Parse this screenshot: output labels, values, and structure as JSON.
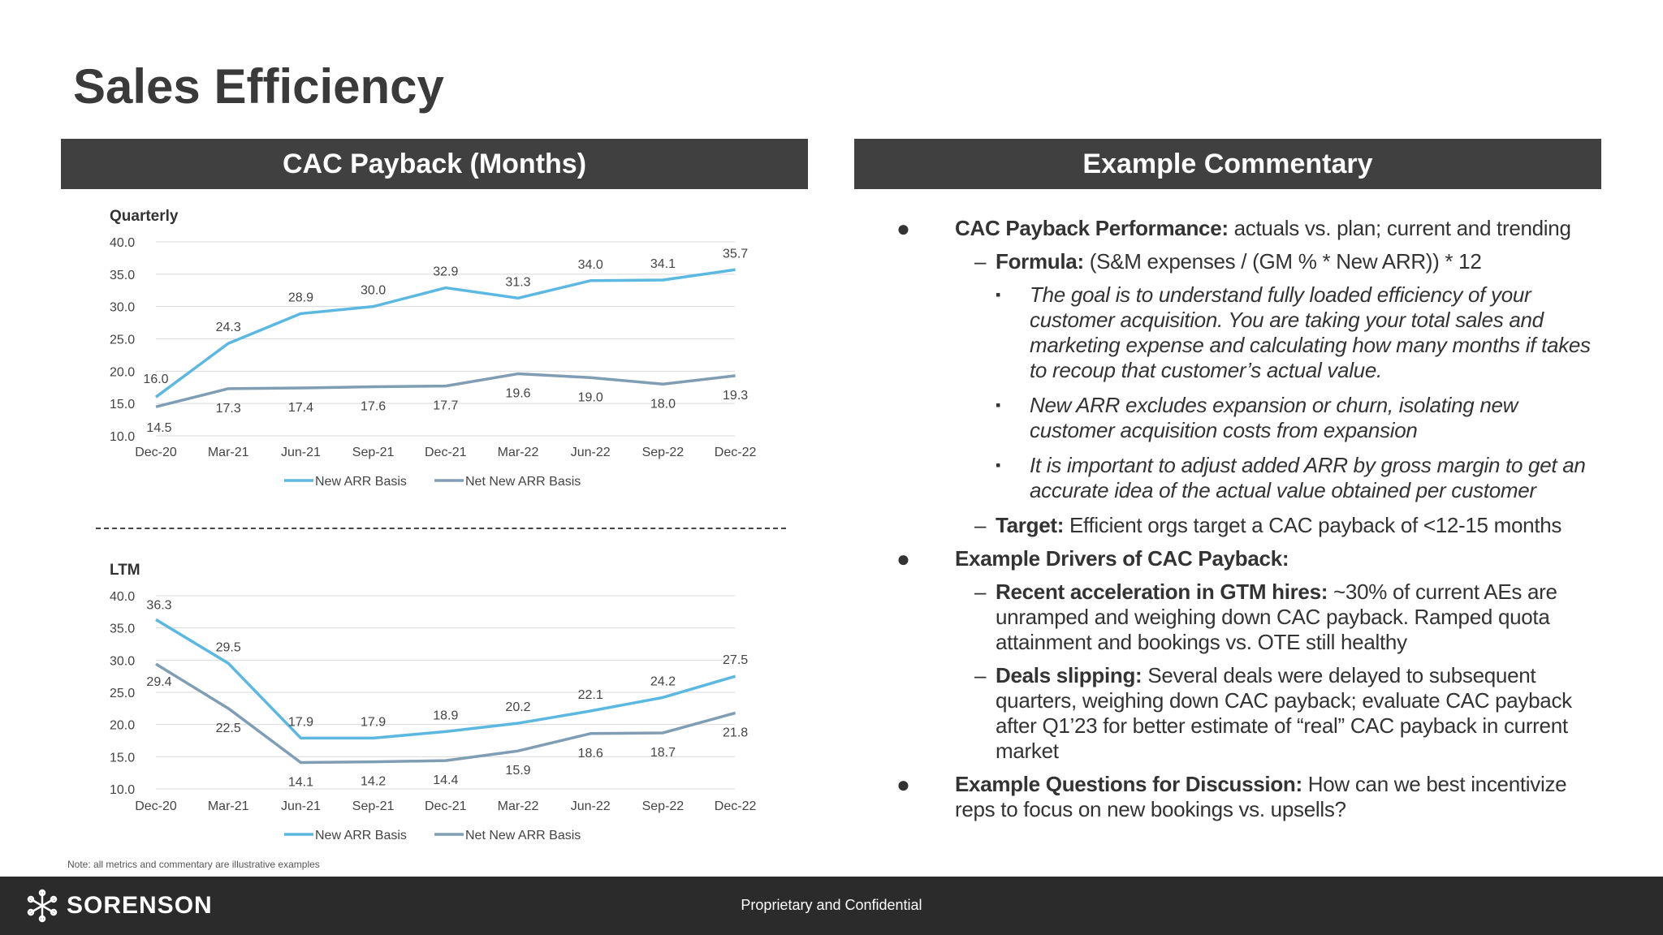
{
  "page": {
    "title": "Sales Efficiency",
    "left_header": "CAC Payback (Months)",
    "right_header": "Example Commentary",
    "note": "Note: all metrics and commentary are illustrative examples",
    "footer_text": "Proprietary and Confidential",
    "logo_text": "SORENSON"
  },
  "colors": {
    "header_bg": "#404040",
    "new_arr": "#5bb8e0",
    "net_new_arr": "#7f9db3",
    "footer_bg": "#2b2b2b"
  },
  "chart_data": [
    {
      "type": "line",
      "title": "Quarterly",
      "categories": [
        "Dec-20",
        "Mar-21",
        "Jun-21",
        "Sep-21",
        "Dec-21",
        "Mar-22",
        "Jun-22",
        "Sep-22",
        "Dec-22"
      ],
      "ylim": [
        10,
        40
      ],
      "yticks": [
        "40.0",
        "35.0",
        "30.0",
        "25.0",
        "20.0",
        "15.0",
        "10.0"
      ],
      "grid": true,
      "legend": "bottom",
      "series": [
        {
          "name": "New ARR Basis",
          "values": [
            16.0,
            24.3,
            28.9,
            30.0,
            32.9,
            31.3,
            34.0,
            34.1,
            35.7
          ]
        },
        {
          "name": "Net New ARR Basis",
          "values": [
            14.5,
            17.3,
            17.4,
            17.6,
            17.7,
            19.6,
            19.0,
            18.0,
            19.3
          ]
        }
      ]
    },
    {
      "type": "line",
      "title": "LTM",
      "categories": [
        "Dec-20",
        "Mar-21",
        "Jun-21",
        "Sep-21",
        "Dec-21",
        "Mar-22",
        "Jun-22",
        "Sep-22",
        "Dec-22"
      ],
      "ylim": [
        10,
        40
      ],
      "yticks": [
        "40.0",
        "35.0",
        "30.0",
        "25.0",
        "20.0",
        "15.0",
        "10.0"
      ],
      "grid": true,
      "legend": "bottom",
      "series": [
        {
          "name": "New ARR Basis",
          "values": [
            36.3,
            29.5,
            17.9,
            17.9,
            18.9,
            20.2,
            22.1,
            24.2,
            27.5
          ]
        },
        {
          "name": "Net New ARR Basis",
          "values": [
            29.4,
            22.5,
            14.1,
            14.2,
            14.4,
            15.9,
            18.6,
            18.7,
            21.8
          ]
        }
      ]
    }
  ],
  "commentary": [
    {
      "level": 1,
      "lead": "CAC Payback Performance:",
      "text": " actuals vs. plan; current and trending"
    },
    {
      "level": 2,
      "lead": "Formula:",
      "text": " (S&M expenses / (GM % * New ARR)) * 12"
    },
    {
      "level": 3,
      "lead": "",
      "text": "The goal is to understand fully loaded efficiency of your customer acquisition. You are taking your total sales and marketing expense and calculating how many months if takes to recoup that customer’s actual value."
    },
    {
      "level": 3,
      "lead": "",
      "text": "New ARR excludes expansion or churn, isolating new customer acquisition costs from expansion"
    },
    {
      "level": 3,
      "lead": "",
      "text": "It is important to adjust added ARR by gross margin to get an accurate idea of the actual value obtained per customer"
    },
    {
      "level": 2,
      "lead": "Target:",
      "text": " Efficient orgs target a CAC payback of <12-15 months"
    },
    {
      "level": 1,
      "lead": "Example Drivers of CAC Payback:",
      "text": ""
    },
    {
      "level": 2,
      "lead": "Recent acceleration in GTM hires:",
      "text": " ~30% of current AEs are unramped and weighing down CAC payback. Ramped quota attainment and bookings vs. OTE still healthy"
    },
    {
      "level": 2,
      "lead": "Deals slipping:",
      "text": " Several deals were delayed to subsequent quarters, weighing down CAC payback; evaluate CAC payback after Q1’23 for better estimate of “real” CAC payback in current market"
    },
    {
      "level": 1,
      "lead": "Example Questions for Discussion:",
      "text": " How can we best incentivize reps to focus on new bookings vs. upsells?"
    }
  ],
  "bullet_marks": {
    "1": "●",
    "2": "–",
    "3": "▪"
  }
}
